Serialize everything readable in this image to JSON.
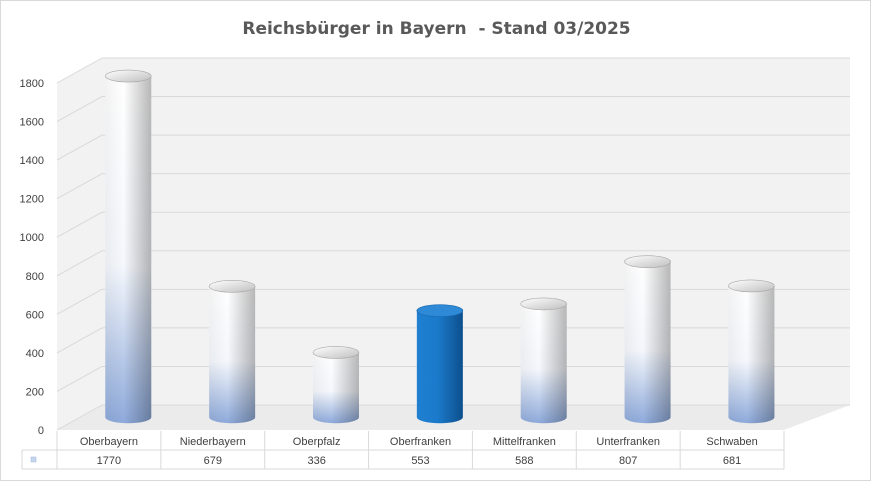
{
  "chart_data": {
    "type": "bar",
    "title": "Reichsbürger in Bayern  - Stand 03/2025",
    "categories": [
      "Oberbayern",
      "Niederbayern",
      "Oberpfalz",
      "Oberfranken",
      "Mittelfranken",
      "Unterfranken",
      "Schwaben"
    ],
    "values": [
      1770,
      679,
      336,
      553,
      588,
      807,
      681
    ],
    "ylim": [
      0,
      1800
    ],
    "yticks": [
      0,
      200,
      400,
      600,
      800,
      1000,
      1200,
      1400,
      1600,
      1800
    ],
    "grid": true,
    "data_table": true,
    "highlight_category": "Oberfranken",
    "colors": {
      "bar_light": "#ffffff",
      "bar_shade": "#8eaadb",
      "highlight": "#0070c0",
      "grid": "#d9d9d9",
      "wall": "#f2f2f2",
      "text": "#404040",
      "title": "#595959"
    }
  }
}
